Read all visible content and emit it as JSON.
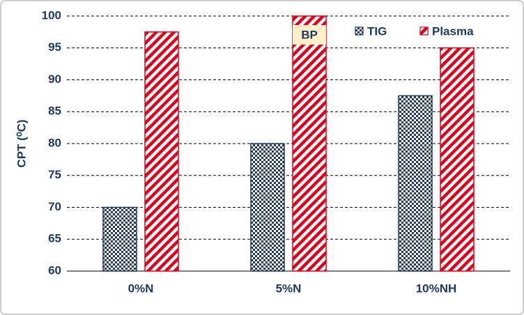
{
  "chart_data": {
    "type": "bar",
    "ylabel": "CPT (⁰C)",
    "categories": [
      "0%N",
      "5%N",
      "10%NH"
    ],
    "series": [
      {
        "name": "TIG",
        "color": "#1f3864",
        "pattern": "checker",
        "values": [
          70,
          80,
          87.5
        ]
      },
      {
        "name": "Plasma",
        "color": "#e0001a",
        "pattern": "stripes",
        "values": [
          97.5,
          100,
          95
        ]
      }
    ],
    "annotation": "BP",
    "ylim": [
      60,
      100
    ],
    "yticks": [
      60,
      65,
      70,
      75,
      80,
      85,
      90,
      95,
      100
    ],
    "grid": true,
    "legend": "top-right"
  }
}
